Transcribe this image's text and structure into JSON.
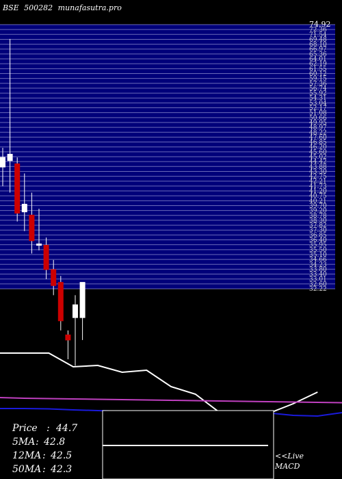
{
  "header": {
    "exchange": "BSE",
    "code": "500282",
    "site": "munafasutra.pro"
  },
  "colors": {
    "background": "#000000",
    "band_fill": "#00007a",
    "band_line": "#6a6ab8",
    "bull": "#ffffff",
    "bear": "#cc0000",
    "wick": "#ffffff",
    "short_line": "#ffffff",
    "ma_line": "#c040c0",
    "blue_line": "#1a1adc",
    "macd_line": "#ffffff",
    "macd_border": "#ffffff"
  },
  "chart_data": [
    {
      "type": "candlestick",
      "price_labels": [
        "74.92",
        "72.36",
        "71.54",
        "69.48",
        "68.10",
        "66.97",
        "65.36",
        "64.01",
        "62.19",
        "61.55",
        "60.12",
        "59.15",
        "57.36",
        "56.74",
        "55.92",
        "54.31",
        "53.04",
        "52.17",
        "51.08",
        "50.66",
        "49.95",
        "48.97",
        "48.22",
        "47.60",
        "46.85",
        "46.20",
        "45.60",
        "45.02",
        "44.42",
        "43.88",
        "43.30",
        "42.75",
        "42.21",
        "41.73",
        "41.20",
        "40.75",
        "40.21",
        "39.70",
        "39.20",
        "38.78",
        "38.30",
        "37.82",
        "37.30",
        "36.85",
        "36.40",
        "35.95",
        "35.50",
        "35.10",
        "34.66",
        "34.23",
        "33.80",
        "33.40",
        "33.01",
        "32.60",
        "32.22"
      ],
      "price_axis": [
        32,
        76
      ],
      "candles": [
        {
          "open": 51.0,
          "high": 54.0,
          "low": 48.0,
          "close": 52.5
        },
        {
          "open": 52.0,
          "high": 71.0,
          "low": 47.0,
          "close": 53.0
        },
        {
          "open": 51.5,
          "high": 52.5,
          "low": 42.5,
          "close": 43.8
        },
        {
          "open": 44.0,
          "high": 50.0,
          "low": 41.0,
          "close": 45.2
        },
        {
          "open": 43.5,
          "high": 47.0,
          "low": 37.5,
          "close": 39.5
        },
        {
          "open": 39.0,
          "high": 44.5,
          "low": 38.0,
          "close": 39.0
        },
        {
          "open": 38.8,
          "high": 40.0,
          "low": 33.5,
          "close": 35.0
        },
        {
          "open": 35.0,
          "high": 36.5,
          "low": 31.0,
          "close": 32.5
        },
        {
          "open": 33.0,
          "high": 34.0,
          "low": 25.5,
          "close": 27.0
        },
        {
          "open": 24.8,
          "high": 25.5,
          "low": 21.0,
          "close": 24.0
        },
        {
          "open": 27.5,
          "high": 31.0,
          "low": 20.0,
          "close": 29.5
        },
        {
          "open": 27.5,
          "high": 33.0,
          "low": 24.0,
          "close": 33.0
        }
      ]
    },
    {
      "type": "line",
      "x": [
        0,
        1,
        2,
        3,
        4,
        5,
        6,
        7,
        8,
        9,
        10,
        11,
        12,
        13,
        14
      ],
      "series": [
        {
          "key": "short_line",
          "values": [
            89,
            89,
            89,
            69,
            71,
            61,
            64,
            40,
            29,
            2,
            -2,
            1,
            15,
            32,
            null
          ]
        },
        {
          "key": "ma_line",
          "values": [
            24,
            23,
            22.5,
            22,
            21.5,
            21,
            20.5,
            20,
            19.5,
            19,
            18.5,
            18,
            17.5,
            17,
            16.5
          ]
        },
        {
          "key": "blue_line",
          "values": [
            8,
            8,
            7.5,
            6,
            5,
            4,
            3,
            2,
            1,
            0,
            2,
            1.5,
            -2,
            -3,
            2
          ]
        }
      ]
    }
  ],
  "info": {
    "price_label": "Price",
    "price_value": "44.7",
    "ma5_label": "5MA",
    "ma5_value": "42.8",
    "ma12_label": "12MA",
    "ma12_value": "42.5",
    "ma50_label": "50MA",
    "ma50_value": "42.3"
  },
  "macd": {
    "live_label": "<<Live",
    "macd_label": "MACD"
  }
}
